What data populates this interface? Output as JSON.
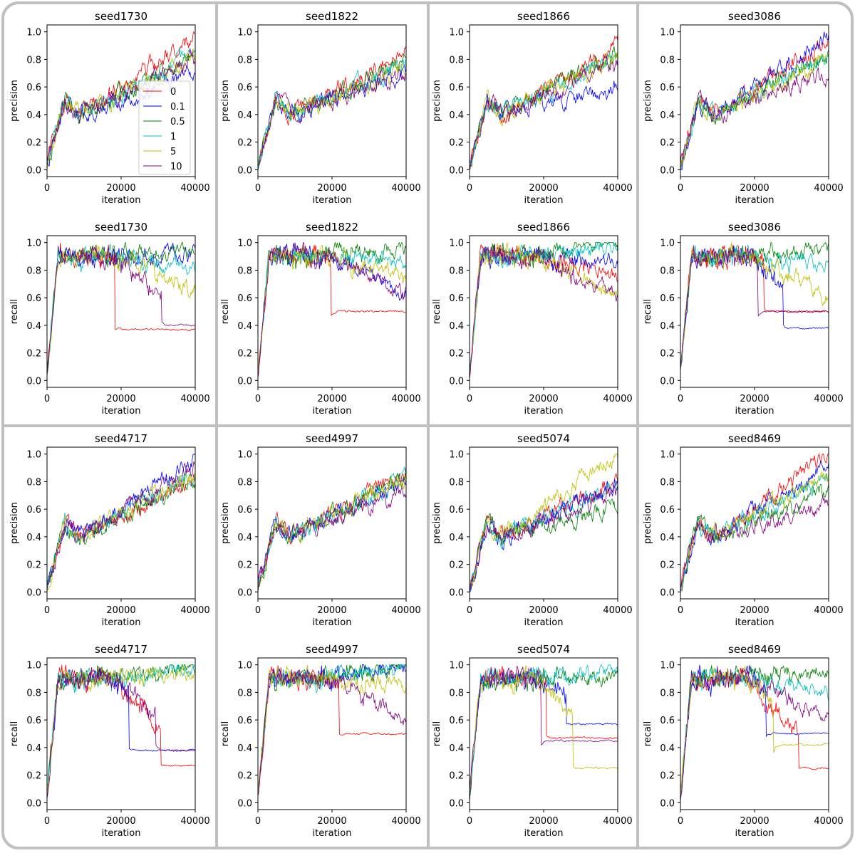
{
  "chart_data": {
    "type": "line",
    "legend": {
      "placement": "center-right of first panel",
      "labels": [
        "0",
        "0.1",
        "0.5",
        "1",
        "5",
        "10"
      ]
    },
    "series_colors": {
      "0": "#ff0000",
      "0.1": "#0000ff",
      "0.5": "#008000",
      "1": "#00bfbf",
      "5": "#bfbf00",
      "10": "#800080"
    },
    "xlabel": "iteration",
    "xlim": [
      0,
      40000
    ],
    "ylim": [
      -0.05,
      1.05
    ],
    "xticks": [
      0,
      20000,
      40000
    ],
    "yticks": [
      0.0,
      0.2,
      0.4,
      0.6,
      0.8,
      1.0
    ],
    "panels": [
      {
        "title": "seed1730",
        "ylabel": "precision",
        "kind": "precision",
        "seed": 1730,
        "finals": {
          "0": 0.97,
          "0.1": 0.68,
          "0.5": 0.82,
          "1": 0.84,
          "5": 0.82,
          "10": 0.8
        }
      },
      {
        "title": "seed1822",
        "ylabel": "precision",
        "kind": "precision",
        "seed": 1822,
        "finals": {
          "0": 0.85,
          "0.1": 0.72,
          "0.5": 0.78,
          "1": 0.76,
          "5": 0.74,
          "10": 0.7
        }
      },
      {
        "title": "seed1866",
        "ylabel": "precision",
        "kind": "precision",
        "seed": 1866,
        "finals": {
          "0": 0.9,
          "0.1": 0.6,
          "0.5": 0.86,
          "1": 0.84,
          "5": 0.8,
          "10": 0.78
        }
      },
      {
        "title": "seed3086",
        "ylabel": "precision",
        "kind": "precision",
        "seed": 3086,
        "finals": {
          "0": 0.93,
          "0.1": 0.96,
          "0.5": 0.82,
          "1": 0.84,
          "5": 0.8,
          "10": 0.7
        }
      },
      {
        "title": "seed1730",
        "ylabel": "recall",
        "kind": "recall",
        "seed": 1730,
        "finals": {
          "0": 0.37,
          "0.1": 0.92,
          "0.5": 0.95,
          "1": 0.82,
          "5": 0.65,
          "10": 0.4
        }
      },
      {
        "title": "seed1822",
        "ylabel": "recall",
        "kind": "recall",
        "seed": 1822,
        "finals": {
          "0": 0.5,
          "0.1": 0.62,
          "0.5": 0.96,
          "1": 0.87,
          "5": 0.75,
          "10": 0.62
        }
      },
      {
        "title": "seed1866",
        "ylabel": "recall",
        "kind": "recall",
        "seed": 1866,
        "finals": {
          "0": 0.75,
          "0.1": 0.85,
          "0.5": 1.0,
          "1": 0.97,
          "5": 0.62,
          "10": 0.62
        }
      },
      {
        "title": "seed3086",
        "ylabel": "recall",
        "kind": "recall",
        "seed": 3086,
        "finals": {
          "0": 0.5,
          "0.1": 0.38,
          "0.5": 0.97,
          "1": 0.86,
          "5": 0.6,
          "10": 0.5
        }
      },
      {
        "title": "seed4717",
        "ylabel": "precision",
        "kind": "precision",
        "seed": 4717,
        "finals": {
          "0": 0.8,
          "0.1": 0.95,
          "0.5": 0.82,
          "1": 0.86,
          "5": 0.84,
          "10": 0.9
        }
      },
      {
        "title": "seed4997",
        "ylabel": "precision",
        "kind": "precision",
        "seed": 4997,
        "finals": {
          "0": 0.85,
          "0.1": 0.8,
          "0.5": 0.84,
          "1": 0.82,
          "5": 0.84,
          "10": 0.72
        }
      },
      {
        "title": "seed5074",
        "ylabel": "precision",
        "kind": "precision",
        "seed": 5074,
        "finals": {
          "0": 0.8,
          "0.1": 0.78,
          "0.5": 0.62,
          "1": 0.76,
          "5": 1.0,
          "10": 0.72
        }
      },
      {
        "title": "seed8469",
        "ylabel": "precision",
        "kind": "precision",
        "seed": 8469,
        "finals": {
          "0": 1.0,
          "0.1": 0.92,
          "0.5": 0.74,
          "1": 0.82,
          "5": 0.86,
          "10": 0.62
        }
      },
      {
        "title": "seed4717",
        "ylabel": "recall",
        "kind": "recall",
        "seed": 4717,
        "finals": {
          "0": 0.27,
          "0.1": 0.38,
          "0.5": 1.0,
          "1": 0.97,
          "5": 0.92,
          "10": 0.38
        }
      },
      {
        "title": "seed4997",
        "ylabel": "recall",
        "kind": "recall",
        "seed": 4997,
        "finals": {
          "0": 0.5,
          "0.1": 1.0,
          "0.5": 1.0,
          "1": 1.0,
          "5": 0.85,
          "10": 0.62
        }
      },
      {
        "title": "seed5074",
        "ylabel": "recall",
        "kind": "recall",
        "seed": 5074,
        "finals": {
          "0": 0.47,
          "0.1": 0.57,
          "0.5": 0.9,
          "1": 0.95,
          "5": 0.25,
          "10": 0.45
        }
      },
      {
        "title": "seed8469",
        "ylabel": "recall",
        "kind": "recall",
        "seed": 8469,
        "finals": {
          "0": 0.25,
          "0.1": 0.5,
          "0.5": 0.97,
          "1": 0.8,
          "5": 0.42,
          "10": 0.62
        }
      }
    ]
  }
}
